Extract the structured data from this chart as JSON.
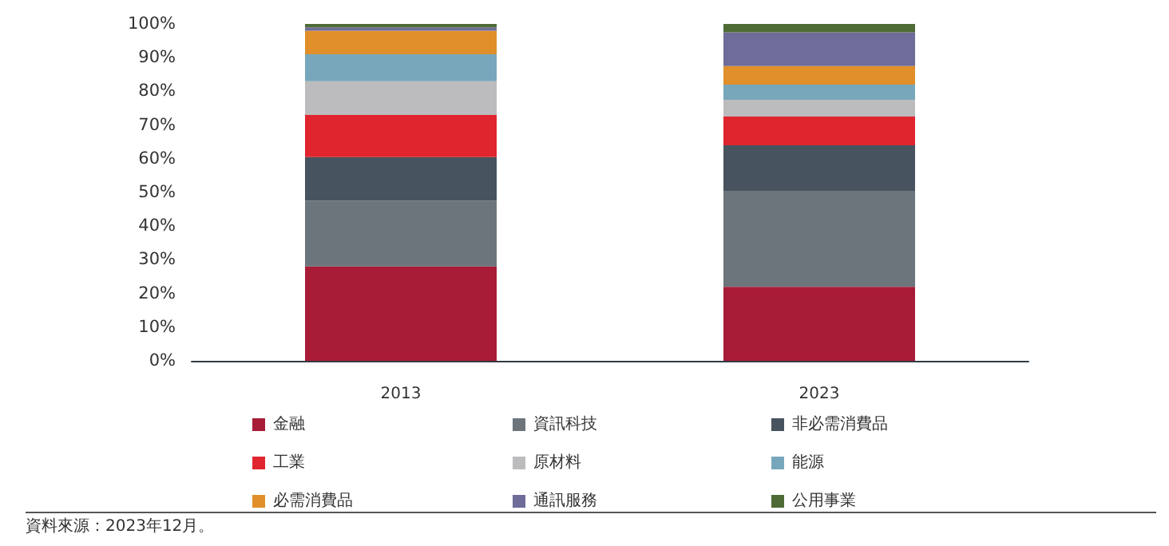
{
  "chart_data": {
    "type": "bar",
    "stacked": true,
    "categories": [
      "2013",
      "2023"
    ],
    "series": [
      {
        "name": "金融",
        "color": "#a81c38",
        "values": [
          28,
          22
        ]
      },
      {
        "name": "資訊科技",
        "color": "#6b757b",
        "values": [
          19.5,
          28.5
        ]
      },
      {
        "name": "非必需消費品",
        "color": "#47535e",
        "values": [
          13,
          13.5
        ]
      },
      {
        "name": "工業",
        "color": "#e0252f",
        "values": [
          12.5,
          8.5
        ]
      },
      {
        "name": "原材料",
        "color": "#bcbcbe",
        "values": [
          10,
          5
        ]
      },
      {
        "name": "能源",
        "color": "#78a7bb",
        "values": [
          8,
          4.5
        ]
      },
      {
        "name": "必需消費品",
        "color": "#e08f2a",
        "values": [
          7,
          5.5
        ]
      },
      {
        "name": "通訊服務",
        "color": "#6f6c99",
        "values": [
          1,
          10
        ]
      },
      {
        "name": "公用事業",
        "color": "#4f6b35",
        "values": [
          1,
          2.5
        ]
      }
    ],
    "ylim": [
      0,
      100
    ],
    "yticks": [
      {
        "value": 0,
        "label": "0%"
      },
      {
        "value": 10,
        "label": "10%"
      },
      {
        "value": 20,
        "label": "20%"
      },
      {
        "value": 30,
        "label": "30%"
      },
      {
        "value": 40,
        "label": "40%"
      },
      {
        "value": 50,
        "label": "50%"
      },
      {
        "value": 60,
        "label": "60%"
      },
      {
        "value": 70,
        "label": "70%"
      },
      {
        "value": 80,
        "label": "80%"
      },
      {
        "value": 90,
        "label": "90%"
      },
      {
        "value": 100,
        "label": "100%"
      }
    ],
    "grid": false,
    "legend": "bottom",
    "annotations": [
      "資料來源：2023年12月。"
    ]
  }
}
